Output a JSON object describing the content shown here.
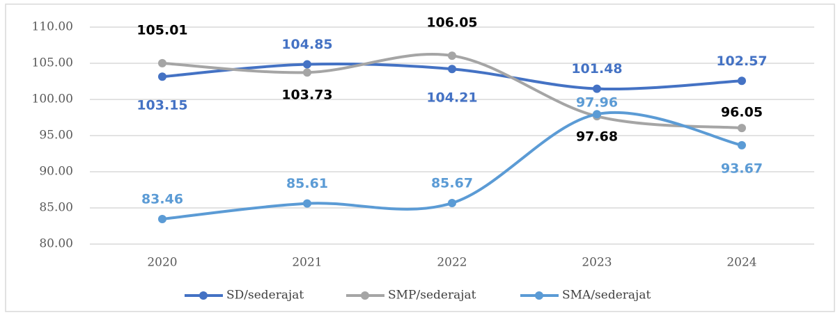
{
  "chart_data": {
    "type": "line",
    "categories": [
      "2020",
      "2021",
      "2022",
      "2023",
      "2024"
    ],
    "series": [
      {
        "name": "SD/sederajat",
        "color": "#4472c4",
        "values": [
          103.15,
          104.85,
          104.21,
          101.48,
          102.57
        ]
      },
      {
        "name": "SMP/sederajat",
        "color": "#a5a5a5",
        "values": [
          105.01,
          103.73,
          106.05,
          97.68,
          96.05
        ]
      },
      {
        "name": "SMA/sederajat",
        "color": "#5b9bd5",
        "values": [
          83.46,
          85.61,
          85.67,
          97.96,
          93.67
        ]
      }
    ],
    "ylim": [
      80,
      110
    ],
    "yticks": [
      {
        "value": 80,
        "label": "80.00"
      },
      {
        "value": 85,
        "label": "85.00"
      },
      {
        "value": 90,
        "label": "90.00"
      },
      {
        "value": 95,
        "label": "95.00"
      },
      {
        "value": 100,
        "label": "100.00"
      },
      {
        "value": 105,
        "label": "105.00"
      },
      {
        "value": 110,
        "label": "110.00"
      }
    ],
    "grid": true,
    "legend": "bottom"
  }
}
